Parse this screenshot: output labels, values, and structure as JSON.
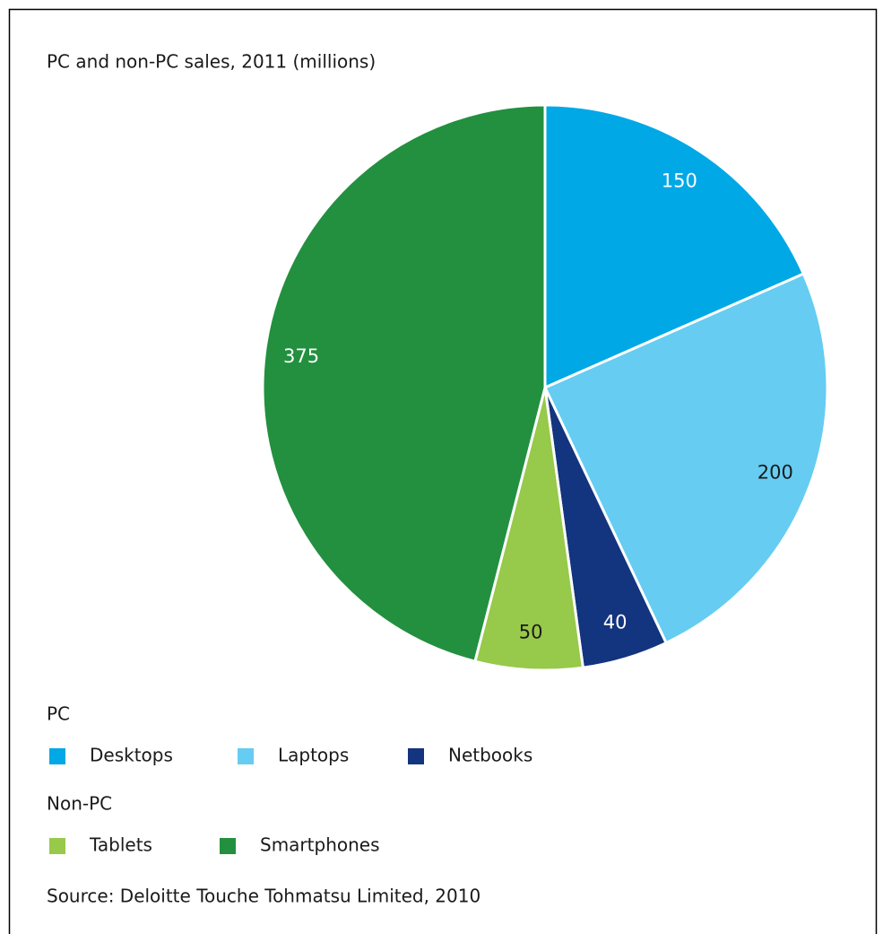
{
  "chart_data": {
    "type": "pie",
    "title": "PC and non-PC sales, 2011 (millions)",
    "groups": [
      {
        "title": "PC",
        "series": [
          {
            "name": "Desktops",
            "color": "#00a8e6",
            "value": 150
          },
          {
            "name": "Laptops",
            "color": "#66ccf2",
            "value": 200
          },
          {
            "name": "Netbooks",
            "color": "#13347e",
            "value": 40
          }
        ]
      },
      {
        "title": "Non-PC",
        "series": [
          {
            "name": "Tablets",
            "color": "#97c94a",
            "value": 50
          },
          {
            "name": "Smartphones",
            "color": "#22903f",
            "value": 375
          }
        ]
      }
    ],
    "source": "Source: Deloitte Touche Tohmatsu Limited, 2010"
  }
}
